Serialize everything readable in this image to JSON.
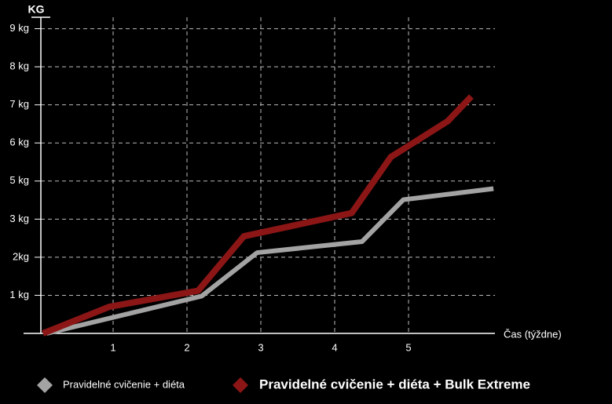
{
  "chart_data": {
    "type": "line",
    "y_label": "KG",
    "x_label": "Čas (týždne)",
    "xlim": [
      0,
      6.17
    ],
    "ylim": [
      0,
      8.3
    ],
    "xticks": [
      1,
      2,
      3,
      4,
      5
    ],
    "yticks": [
      {
        "value": 1,
        "label": "1 kg"
      },
      {
        "value": 2,
        "label": "2kg"
      },
      {
        "value": 3,
        "label": "3 kg"
      },
      {
        "value": 4,
        "label": "5 kg"
      },
      {
        "value": 5,
        "label": "6 kg"
      },
      {
        "value": 6,
        "label": "7 kg"
      },
      {
        "value": 7,
        "label": "8 kg"
      },
      {
        "value": 8,
        "label": "9 kg"
      }
    ],
    "grid": true,
    "series": [
      {
        "name": "Pravidelné cvičenie + diéta",
        "color": "#a3a3a3",
        "x": [
          0.1,
          2.2,
          2.95,
          4.37,
          4.93,
          6.15
        ],
        "values": [
          0,
          0.98,
          2.12,
          2.41,
          3.51,
          3.8
        ]
      },
      {
        "name": "Pravidelné cvičenie + diéta + Bulk Extreme",
        "color": "#8c1616",
        "x": [
          0.05,
          0.95,
          2.15,
          2.77,
          4.23,
          4.76,
          5.53,
          5.85
        ],
        "values": [
          0,
          0.7,
          1.12,
          2.55,
          3.16,
          4.63,
          5.57,
          6.22
        ]
      }
    ]
  }
}
